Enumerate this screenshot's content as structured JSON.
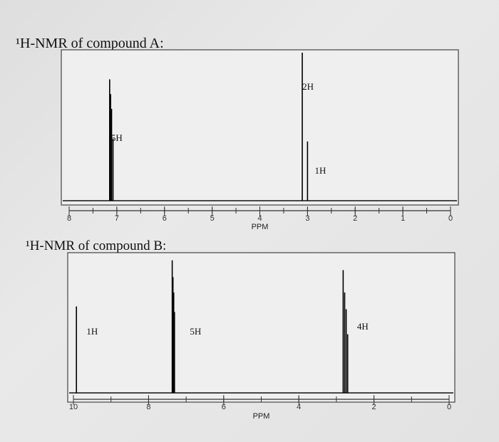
{
  "page": {
    "title_a": "¹H-NMR of compound A:",
    "title_b": "¹H-NMR of compound B:"
  },
  "chart_data": [
    {
      "type": "line",
      "title": "¹H-NMR of compound A:",
      "xlabel": "PPM",
      "ylabel": "",
      "x_reversed": true,
      "xlim": [
        8,
        0
      ],
      "xticks": [
        8,
        7,
        6,
        5,
        4,
        3,
        2,
        1,
        0
      ],
      "peaks": [
        {
          "shift": 7.15,
          "height": 0.82
        },
        {
          "shift": 7.13,
          "height": 0.72
        },
        {
          "shift": 7.11,
          "height": 0.62
        },
        {
          "shift": 7.08,
          "height": 0.42
        },
        {
          "shift": 3.11,
          "height": 1.0
        },
        {
          "shift": 3.0,
          "height": 0.4
        }
      ],
      "annotations": [
        {
          "text": "5H",
          "shift": 7.0
        },
        {
          "text": "2H",
          "shift": 2.99
        },
        {
          "text": "1H",
          "shift": 2.73
        }
      ]
    },
    {
      "type": "line",
      "title": "¹H-NMR of compound B:",
      "xlabel": "PPM",
      "ylabel": "",
      "x_reversed": true,
      "xlim": [
        10,
        0
      ],
      "xticks": [
        10,
        8,
        6,
        4,
        2,
        0
      ],
      "peaks": [
        {
          "shift": 9.92,
          "height": 0.62
        },
        {
          "shift": 7.37,
          "height": 0.95
        },
        {
          "shift": 7.35,
          "height": 0.83
        },
        {
          "shift": 7.33,
          "height": 0.72
        },
        {
          "shift": 7.31,
          "height": 0.58
        },
        {
          "shift": 2.82,
          "height": 0.88
        },
        {
          "shift": 2.78,
          "height": 0.72
        },
        {
          "shift": 2.74,
          "height": 0.6
        },
        {
          "shift": 2.7,
          "height": 0.42
        }
      ],
      "annotations": [
        {
          "text": "1H",
          "shift": 9.5
        },
        {
          "text": "5H",
          "shift": 6.75
        },
        {
          "text": "4H",
          "shift": 2.3
        }
      ]
    }
  ]
}
